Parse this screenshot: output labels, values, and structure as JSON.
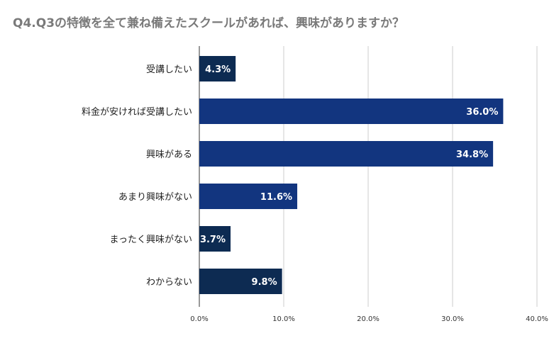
{
  "chart_data": {
    "type": "bar",
    "orientation": "horizontal",
    "title": "Q4.Q3の特徴を全て兼ね備えたスクールがあれば、興味がありますか？",
    "categories": [
      "受講したい",
      "料金が安ければ受講したい",
      "興味がある",
      "あまり興味がない",
      "まったく興味がない",
      "わからない"
    ],
    "values": [
      4.3,
      36.0,
      34.8,
      11.6,
      3.7,
      9.8
    ],
    "data_labels": [
      "4.3%",
      "36.0%",
      "34.8%",
      "11.6%",
      "3.7%",
      "9.8%"
    ],
    "colors": [
      "#0d2b52",
      "#12357f",
      "#12357f",
      "#12357f",
      "#0d2b52",
      "#0d2b52"
    ],
    "xlim": [
      0,
      40
    ],
    "xticks": [
      0,
      10,
      20,
      30,
      40
    ],
    "xtick_labels": [
      "0.0%",
      "10.0%",
      "20.0%",
      "30.0%",
      "40.0%"
    ],
    "grid": true,
    "legend": "none"
  }
}
